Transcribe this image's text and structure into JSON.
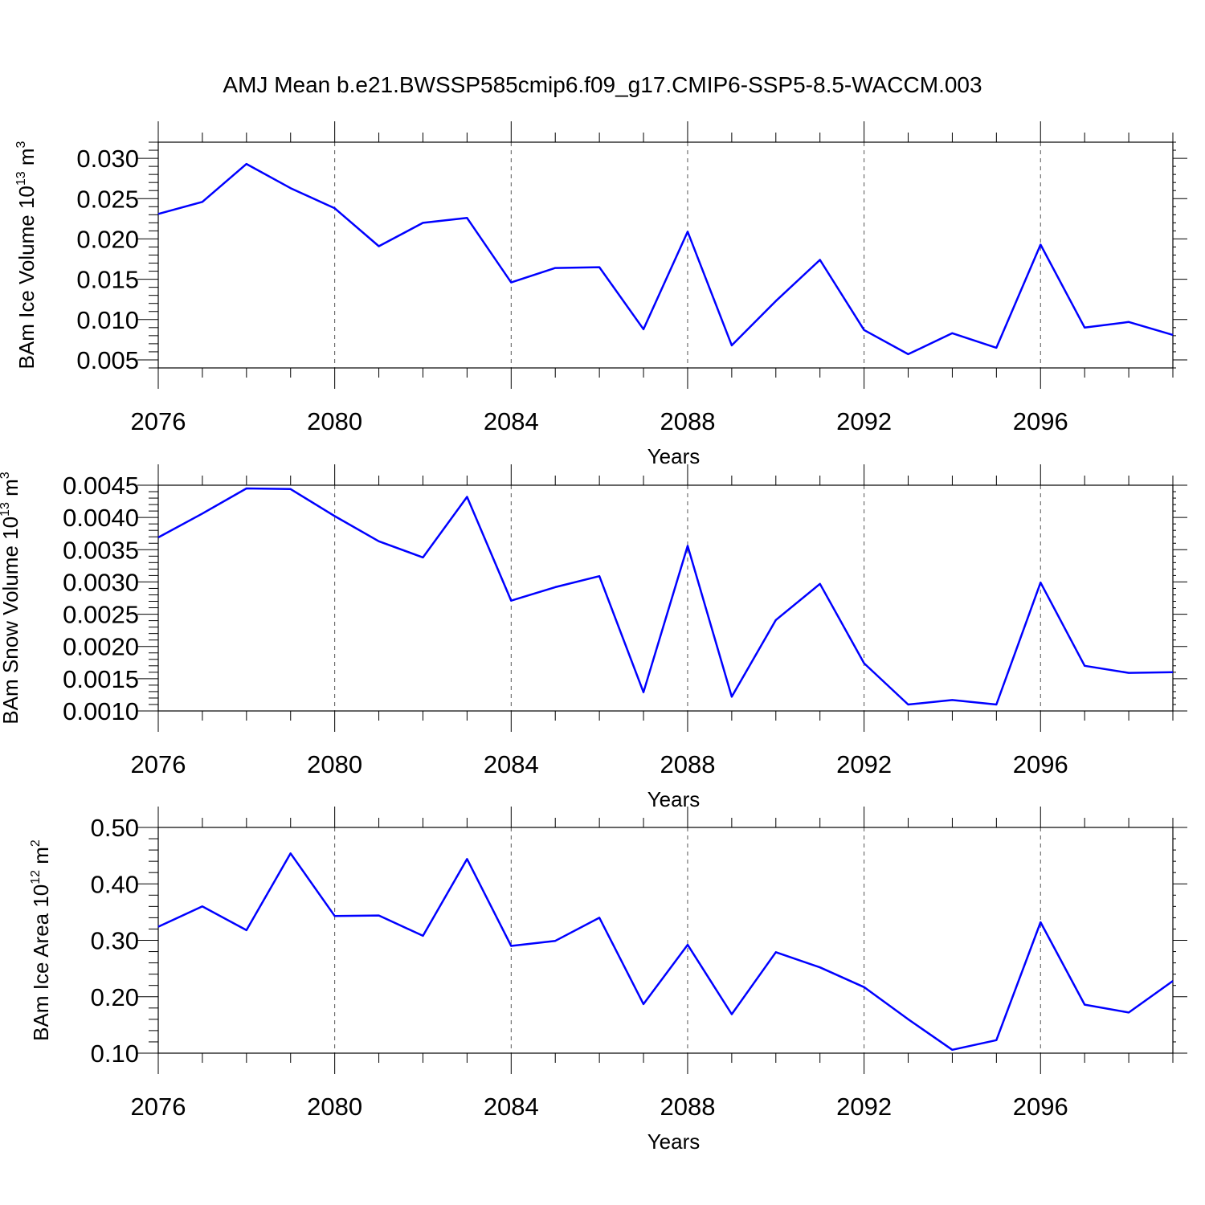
{
  "figure_title": "AMJ Mean b.e21.BWSSP585cmip6.f09_g17.CMIP6-SSP5-8.5-WACCM.003",
  "colors": {
    "line": "#0000ff",
    "axis": "#000000",
    "grid": "#555555"
  },
  "chart_data": [
    {
      "type": "line",
      "xlabel": "Years",
      "ylabel": {
        "prefix": "BAm Ice Volume 10",
        "exp": "13",
        "unit": " m",
        "unit_exp": "3"
      },
      "xlim": [
        2076,
        2099
      ],
      "ylim": [
        0.004,
        0.032
      ],
      "x_ticks": [
        2076,
        2080,
        2084,
        2088,
        2092,
        2096
      ],
      "x_tick_labels": [
        "2076",
        "2080",
        "2084",
        "2088",
        "2092",
        "2096"
      ],
      "y_ticks": [
        0.005,
        0.01,
        0.015,
        0.02,
        0.025,
        0.03
      ],
      "y_tick_labels": [
        "0.005",
        "0.010",
        "0.015",
        "0.020",
        "0.025",
        "0.030"
      ],
      "grid": "dashed vertical at major x ticks",
      "x": [
        2076,
        2077,
        2078,
        2079,
        2080,
        2081,
        2082,
        2083,
        2084,
        2085,
        2086,
        2087,
        2088,
        2089,
        2090,
        2091,
        2092,
        2093,
        2094,
        2095,
        2096,
        2097,
        2098,
        2099
      ],
      "values": [
        0.0231,
        0.0246,
        0.0293,
        0.0263,
        0.0238,
        0.0191,
        0.022,
        0.0226,
        0.0146,
        0.0164,
        0.0165,
        0.0088,
        0.0209,
        0.0068,
        0.0123,
        0.0174,
        0.0087,
        0.0057,
        0.0083,
        0.0065,
        0.0193,
        0.009,
        0.0097,
        0.0081
      ]
    },
    {
      "type": "line",
      "xlabel": "Years",
      "ylabel": {
        "prefix": "BAm Snow Volume 10",
        "exp": "13",
        "unit": " m",
        "unit_exp": "3"
      },
      "xlim": [
        2076,
        2099
      ],
      "ylim": [
        0.001,
        0.0045
      ],
      "x_ticks": [
        2076,
        2080,
        2084,
        2088,
        2092,
        2096
      ],
      "x_tick_labels": [
        "2076",
        "2080",
        "2084",
        "2088",
        "2092",
        "2096"
      ],
      "y_ticks": [
        0.001,
        0.0015,
        0.002,
        0.0025,
        0.003,
        0.0035,
        0.004,
        0.0045
      ],
      "y_tick_labels": [
        "0.0010",
        "0.0015",
        "0.0020",
        "0.0025",
        "0.0030",
        "0.0035",
        "0.0040",
        "0.0045"
      ],
      "grid": "dashed vertical at major x ticks",
      "x": [
        2076,
        2077,
        2078,
        2079,
        2080,
        2081,
        2082,
        2083,
        2084,
        2085,
        2086,
        2087,
        2088,
        2089,
        2090,
        2091,
        2092,
        2093,
        2094,
        2095,
        2096,
        2097,
        2098,
        2099
      ],
      "values": [
        0.00369,
        0.00406,
        0.00445,
        0.00444,
        0.00402,
        0.00363,
        0.00338,
        0.00432,
        0.00271,
        0.00292,
        0.00309,
        0.00129,
        0.00356,
        0.00122,
        0.00241,
        0.00297,
        0.00174,
        0.0011,
        0.00117,
        0.0011,
        0.00299,
        0.0017,
        0.00159,
        0.0016
      ]
    },
    {
      "type": "line",
      "xlabel": "Years",
      "ylabel": {
        "prefix": "BAm Ice Area 10",
        "exp": "12",
        "unit": " m",
        "unit_exp": "2"
      },
      "xlim": [
        2076,
        2099
      ],
      "ylim": [
        0.1,
        0.5
      ],
      "x_ticks": [
        2076,
        2080,
        2084,
        2088,
        2092,
        2096
      ],
      "x_tick_labels": [
        "2076",
        "2080",
        "2084",
        "2088",
        "2092",
        "2096"
      ],
      "y_ticks": [
        0.1,
        0.2,
        0.3,
        0.4,
        0.5
      ],
      "y_tick_labels": [
        "0.10",
        "0.20",
        "0.30",
        "0.40",
        "0.50"
      ],
      "grid": "dashed vertical at major x ticks",
      "x": [
        2076,
        2077,
        2078,
        2079,
        2080,
        2081,
        2082,
        2083,
        2084,
        2085,
        2086,
        2087,
        2088,
        2089,
        2090,
        2091,
        2092,
        2093,
        2094,
        2095,
        2096,
        2097,
        2098,
        2099
      ],
      "values": [
        0.324,
        0.36,
        0.318,
        0.454,
        0.343,
        0.344,
        0.308,
        0.444,
        0.29,
        0.299,
        0.34,
        0.187,
        0.292,
        0.169,
        0.279,
        0.252,
        0.217,
        0.16,
        0.106,
        0.123,
        0.332,
        0.186,
        0.172,
        0.228
      ]
    }
  ]
}
